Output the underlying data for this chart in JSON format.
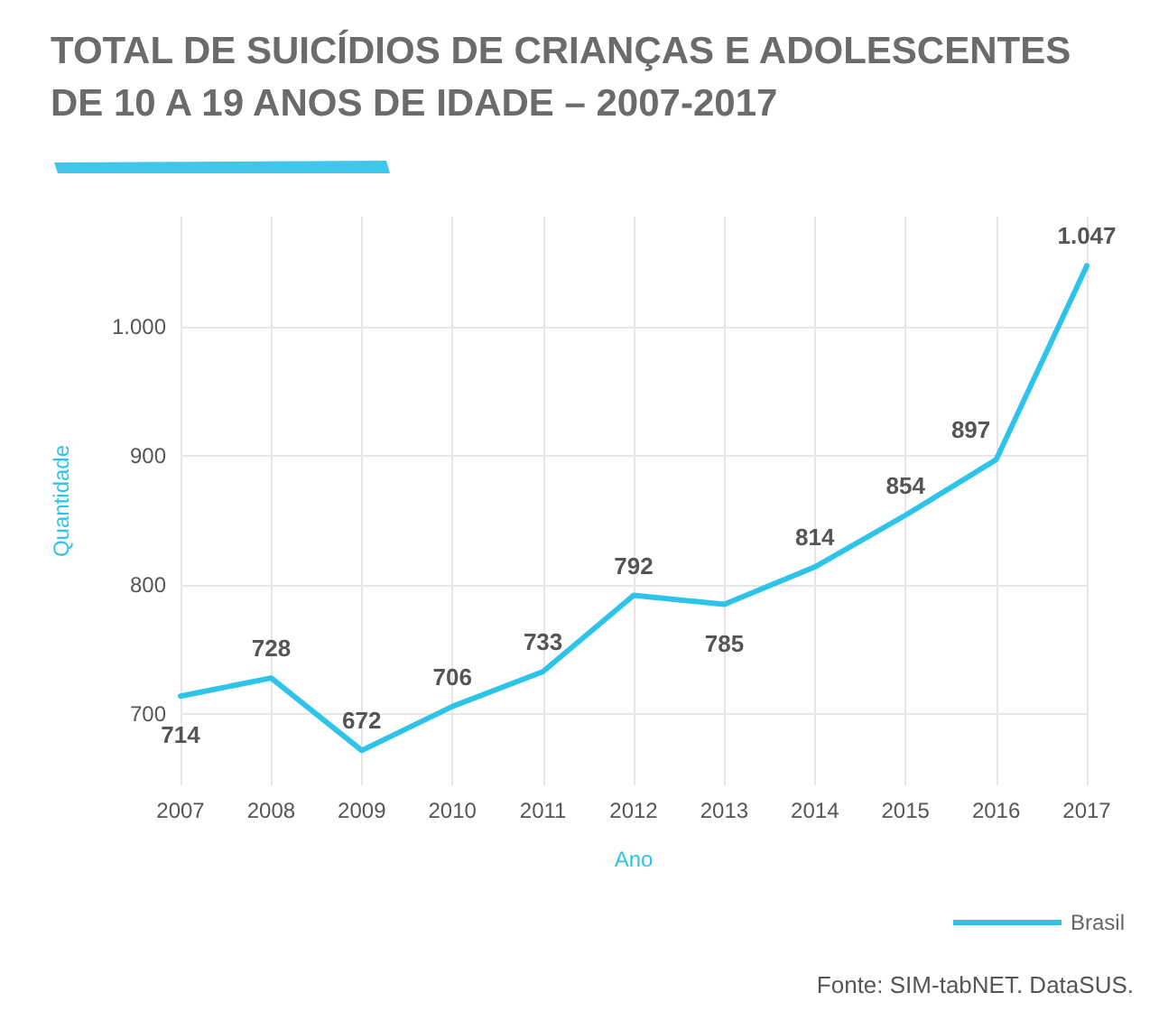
{
  "chart_data": {
    "type": "line",
    "title": "TOTAL DE SUICÍDIOS DE CRIANÇAS E ADOLESCENTES DE 10 A 19 ANOS DE IDADE – 2007-2017",
    "xlabel": "Ano",
    "ylabel": "Quantidade",
    "categories": [
      "2007",
      "2008",
      "2009",
      "2010",
      "2011",
      "2012",
      "2013",
      "2014",
      "2015",
      "2016",
      "2017"
    ],
    "series": [
      {
        "name": "Brasil",
        "color": "#2ec4ea",
        "values": [
          714,
          728,
          672,
          706,
          733,
          792,
          785,
          814,
          854,
          897,
          1047
        ],
        "value_labels": [
          "714",
          "728",
          "672",
          "706",
          "733",
          "792",
          "785",
          "814",
          "854",
          "897",
          "1.047"
        ]
      }
    ],
    "ylim": [
      645,
      1085
    ],
    "yticks": [
      700,
      800,
      900,
      {
        "value": 1000,
        "label": "1.000"
      }
    ],
    "grid": true,
    "legend": "bottom right",
    "marker": "none",
    "line_style": "solid",
    "annotations": [
      "Fonte: SIM-tabNET. DataSUS."
    ]
  }
}
